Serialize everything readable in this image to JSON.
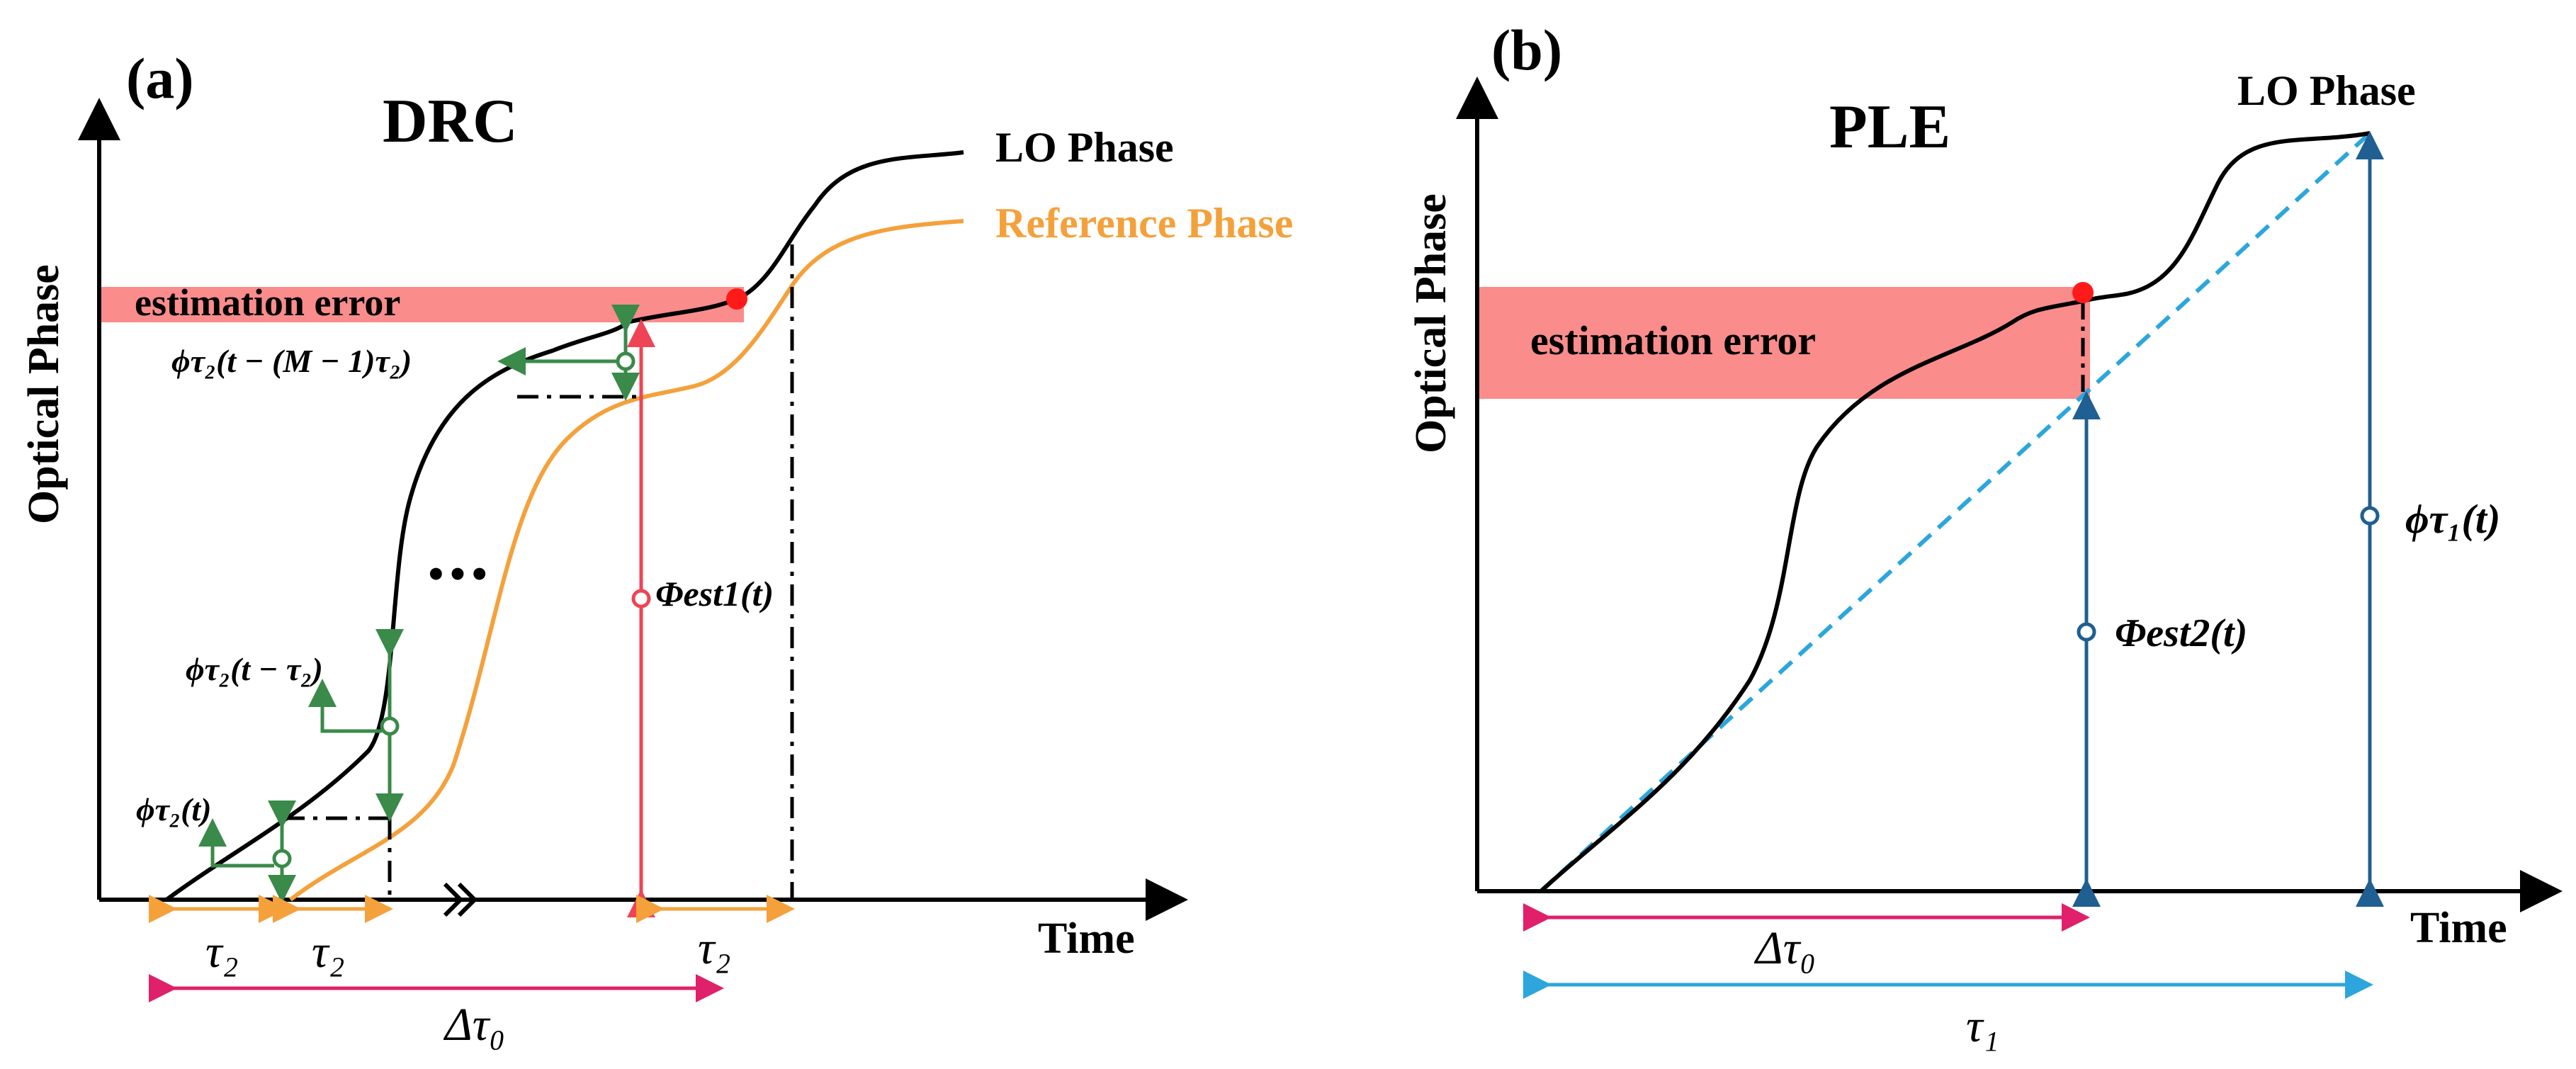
{
  "panel_a": {
    "label": "(a)",
    "title": "DRC",
    "y_axis_label": "Optical Phase",
    "x_axis_label": "Time",
    "lo_label": "LO Phase",
    "ref_label": "Reference Phase",
    "error_label": "estimation error",
    "ellipsis": "•••",
    "tau2_1": "τ₂",
    "tau2_2": "τ₂",
    "tau2_3": "τ₂",
    "delta_tau0": "Δτ₀",
    "phi_t": "ϕτ₂(t)",
    "phi_t_minus_tau2": "ϕτ₂(t − τ₂)",
    "phi_t_m": "ϕτ₂(t − (M − 1)τ₂)",
    "phi_est1": "Φest1(t)"
  },
  "panel_b": {
    "label": "(b)",
    "title": "PLE",
    "y_axis_label": "Optical Phase",
    "x_axis_label": "Time",
    "lo_label": "LO Phase",
    "error_label": "estimation error",
    "delta_tau0": "Δτ₀",
    "tau1": "τ₁",
    "phi_est2": "Φest2(t)",
    "phi_tau1": "ϕτ₁(t)"
  },
  "colors": {
    "lo": "#000000",
    "reference": "#f4a13c",
    "error_band": "#fa8c8c",
    "green": "#3a8a4a",
    "red_arrow": "#ee4455",
    "magenta": "#e0206a",
    "orange_arrow": "#f4a13c",
    "blue": "#1f5f91",
    "light_blue": "#2ca6dc"
  }
}
